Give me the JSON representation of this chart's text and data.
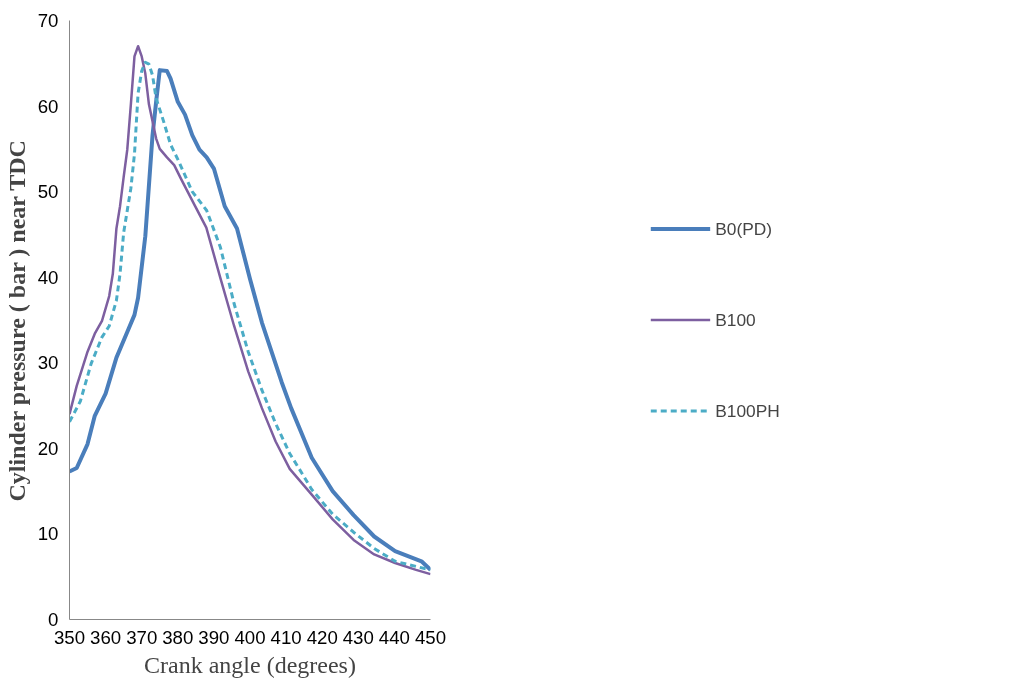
{
  "chart_data": {
    "type": "line",
    "xlabel": "Crank angle (degrees)",
    "ylabel": "Cylinder pressure ( bar ) near TDC",
    "xlim": [
      350,
      450
    ],
    "ylim": [
      0,
      70
    ],
    "xticks": [
      350,
      360,
      370,
      380,
      390,
      400,
      410,
      420,
      430,
      440,
      450
    ],
    "yticks": [
      0,
      10,
      20,
      30,
      40,
      50,
      60,
      70
    ],
    "grid": false,
    "legend": "right",
    "series": [
      {
        "name": "B0(PD)",
        "color": "#4a7ebb",
        "line_style": "solid",
        "x": [
          350,
          352,
          355,
          357,
          360,
          363,
          366,
          368,
          369,
          371,
          372,
          373,
          374,
          375,
          377,
          378,
          380,
          382,
          384,
          386,
          388,
          390,
          393,
          396.4,
          400,
          403.3,
          408.8,
          411.4,
          417.1,
          422.9,
          428.7,
          434.4,
          440.2,
          447.5,
          450
        ],
        "values": [
          17.3,
          17.7,
          20.5,
          23.8,
          26.4,
          30.6,
          33.6,
          35.6,
          37.6,
          44.8,
          50.7,
          56.6,
          60.5,
          64.2,
          64.1,
          63.2,
          60.5,
          59,
          56.6,
          54.9,
          54,
          52.7,
          48.3,
          45.7,
          39.8,
          34.7,
          27.7,
          24.7,
          18.9,
          15.0,
          12.2,
          9.7,
          8.0,
          6.8,
          5.8
        ]
      },
      {
        "name": "B100",
        "color": "#7d5fa0",
        "line_style": "solid",
        "x": [
          350,
          352,
          355,
          357,
          359,
          361,
          362,
          363,
          364,
          365,
          366,
          367,
          368,
          369,
          370,
          371,
          372,
          374,
          375,
          377,
          379,
          381,
          384.8,
          387.9,
          391.8,
          395.6,
          399.5,
          403.3,
          407.1,
          411,
          417.1,
          422.9,
          428.7,
          434.4,
          440.2,
          446,
          450
        ],
        "values": [
          24.0,
          27.3,
          31.3,
          33.4,
          34.9,
          37.8,
          40.4,
          45.7,
          48.3,
          51.7,
          54.9,
          60.2,
          65.8,
          67,
          65.8,
          63.8,
          60.2,
          56.2,
          55,
          54,
          53.1,
          51.4,
          48.3,
          45.8,
          39.9,
          34.3,
          29.0,
          24.7,
          20.8,
          17.6,
          14.6,
          11.7,
          9.3,
          7.6,
          6.6,
          5.8,
          5.3
        ]
      },
      {
        "name": "B100PH",
        "color": "#4bacc6",
        "line_style": "dashed",
        "x": [
          350,
          353,
          356,
          359,
          361,
          363,
          364,
          365,
          366,
          367,
          368,
          369,
          370,
          371,
          372,
          373,
          374,
          376,
          378,
          380.2,
          384,
          388,
          391.8,
          395.6,
          399.5,
          403.3,
          407.1,
          411,
          414.8,
          417.1,
          422.9,
          428.7,
          434.4,
          440.2,
          446,
          450
        ],
        "values": [
          23.1,
          25.5,
          29.9,
          33,
          34.3,
          37.3,
          40.4,
          45.2,
          47.8,
          50.4,
          54.4,
          61.5,
          64.1,
          65.1,
          64.9,
          63.6,
          60.9,
          58.3,
          55.5,
          53.6,
          50.0,
          47.8,
          43.5,
          36.9,
          31.3,
          26.8,
          22.9,
          19.4,
          16.8,
          15.2,
          12.3,
          10.2,
          8.3,
          6.8,
          6.2,
          5.8
        ]
      }
    ]
  }
}
